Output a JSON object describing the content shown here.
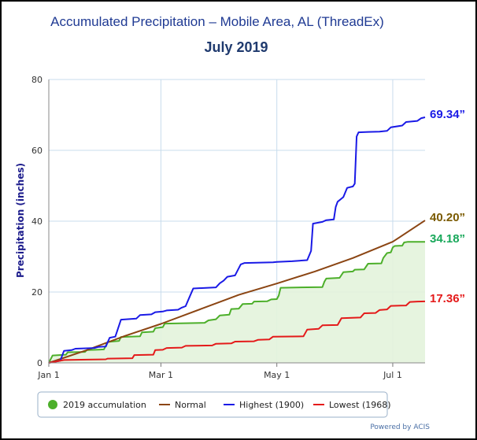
{
  "title": "Accumulated Precipitation – Mobile Area, AL (ThreadEx)",
  "subtitle": "July 2019",
  "credit": "Powered by ACIS",
  "chart_data": {
    "type": "line",
    "ylabel": "Precipitation (inches)",
    "xlabel": "",
    "ylim": [
      0,
      80
    ],
    "xlim": [
      0,
      198
    ],
    "y_ticks": [
      0,
      20,
      40,
      60,
      80
    ],
    "x_ticks": [
      {
        "day": 0,
        "label": "Jan 1"
      },
      {
        "day": 59,
        "label": "Mar 1"
      },
      {
        "day": 120,
        "label": "May 1"
      },
      {
        "day": 181,
        "label": "Jul 1"
      }
    ],
    "grid": true,
    "legend_position": "bottom",
    "series": [
      {
        "name": "2019 accumulation",
        "color": "#4caf2a",
        "fill": "#e3f3dc",
        "marker": "dot",
        "points": [
          [
            0,
            0
          ],
          [
            2,
            2.1
          ],
          [
            9,
            2.3
          ],
          [
            10,
            3.0
          ],
          [
            19,
            3.1
          ],
          [
            20,
            3.6
          ],
          [
            29,
            3.8
          ],
          [
            31,
            5.9
          ],
          [
            37,
            6.2
          ],
          [
            38,
            7.3
          ],
          [
            48,
            7.5
          ],
          [
            49,
            8.6
          ],
          [
            55,
            8.8
          ],
          [
            56,
            9.8
          ],
          [
            60,
            10.1
          ],
          [
            61,
            11.1
          ],
          [
            82,
            11.3
          ],
          [
            84,
            12.0
          ],
          [
            88,
            12.3
          ],
          [
            90,
            13.4
          ],
          [
            95,
            13.6
          ],
          [
            96,
            15.2
          ],
          [
            100,
            15.3
          ],
          [
            102,
            16.6
          ],
          [
            107,
            16.7
          ],
          [
            108,
            17.3
          ],
          [
            115,
            17.4
          ],
          [
            117,
            17.9
          ],
          [
            120,
            18.0
          ],
          [
            121,
            19.0
          ],
          [
            122,
            21.2
          ],
          [
            144,
            21.4
          ],
          [
            145,
            22.9
          ],
          [
            146,
            23.8
          ],
          [
            153,
            24.0
          ],
          [
            155,
            25.6
          ],
          [
            160,
            25.8
          ],
          [
            161,
            26.3
          ],
          [
            166,
            26.4
          ],
          [
            168,
            28.0
          ],
          [
            175,
            28.1
          ],
          [
            176,
            29.6
          ],
          [
            178,
            31.0
          ],
          [
            180,
            31.2
          ],
          [
            181,
            32.6
          ],
          [
            182,
            33.0
          ],
          [
            186,
            33.1
          ],
          [
            187,
            34.0
          ],
          [
            189,
            34.18
          ],
          [
            198,
            34.18
          ]
        ],
        "end_label": "34.18”"
      },
      {
        "name": "Normal",
        "color": "#8b4513",
        "points": [
          [
            0,
            0
          ],
          [
            20,
            3.6
          ],
          [
            40,
            7.6
          ],
          [
            59,
            11.0
          ],
          [
            80,
            15.2
          ],
          [
            100,
            19.2
          ],
          [
            120,
            22.4
          ],
          [
            140,
            25.8
          ],
          [
            160,
            29.6
          ],
          [
            181,
            34.2
          ],
          [
            198,
            40.2
          ]
        ],
        "end_label": "40.20”"
      },
      {
        "name": "Highest (1900)",
        "color": "#1a1ae6",
        "points": [
          [
            0,
            0
          ],
          [
            6,
            0.6
          ],
          [
            8,
            3.4
          ],
          [
            12,
            3.6
          ],
          [
            14,
            4.0
          ],
          [
            24,
            4.2
          ],
          [
            26,
            4.5
          ],
          [
            30,
            4.6
          ],
          [
            32,
            7.1
          ],
          [
            35,
            7.4
          ],
          [
            38,
            12.2
          ],
          [
            46,
            12.5
          ],
          [
            48,
            13.5
          ],
          [
            54,
            13.7
          ],
          [
            56,
            14.3
          ],
          [
            60,
            14.5
          ],
          [
            62,
            14.8
          ],
          [
            68,
            15.0
          ],
          [
            70,
            15.6
          ],
          [
            72,
            16.0
          ],
          [
            74,
            18.5
          ],
          [
            76,
            21.0
          ],
          [
            88,
            21.3
          ],
          [
            90,
            22.5
          ],
          [
            92,
            23.2
          ],
          [
            94,
            24.3
          ],
          [
            98,
            24.7
          ],
          [
            101,
            27.8
          ],
          [
            103,
            28.2
          ],
          [
            118,
            28.4
          ],
          [
            120,
            28.5
          ],
          [
            128,
            28.7
          ],
          [
            136,
            29.0
          ],
          [
            138,
            31.6
          ],
          [
            139,
            39.3
          ],
          [
            144,
            39.8
          ],
          [
            146,
            40.3
          ],
          [
            150,
            40.5
          ],
          [
            151,
            44.0
          ],
          [
            152,
            45.5
          ],
          [
            155,
            46.8
          ],
          [
            157,
            49.4
          ],
          [
            160,
            49.8
          ],
          [
            161,
            50.6
          ],
          [
            162,
            63.9
          ],
          [
            163,
            65.1
          ],
          [
            168,
            65.2
          ],
          [
            174,
            65.3
          ],
          [
            178,
            65.5
          ],
          [
            180,
            66.5
          ],
          [
            186,
            67.0
          ],
          [
            188,
            68.0
          ],
          [
            194,
            68.3
          ],
          [
            196,
            69.1
          ],
          [
            198,
            69.34
          ]
        ],
        "end_label": "69.34”"
      },
      {
        "name": "Lowest (1968)",
        "color": "#e41a1a",
        "points": [
          [
            0,
            0
          ],
          [
            8,
            0.8
          ],
          [
            20,
            0.9
          ],
          [
            30,
            1.0
          ],
          [
            31,
            1.2
          ],
          [
            44,
            1.3
          ],
          [
            45,
            2.2
          ],
          [
            55,
            2.3
          ],
          [
            56,
            3.6
          ],
          [
            60,
            3.7
          ],
          [
            62,
            4.2
          ],
          [
            70,
            4.3
          ],
          [
            72,
            4.8
          ],
          [
            86,
            4.9
          ],
          [
            88,
            5.4
          ],
          [
            96,
            5.5
          ],
          [
            98,
            6.0
          ],
          [
            108,
            6.1
          ],
          [
            110,
            6.5
          ],
          [
            116,
            6.6
          ],
          [
            118,
            7.4
          ],
          [
            134,
            7.5
          ],
          [
            136,
            9.4
          ],
          [
            142,
            9.6
          ],
          [
            144,
            10.6
          ],
          [
            152,
            10.7
          ],
          [
            154,
            12.6
          ],
          [
            164,
            12.8
          ],
          [
            166,
            14.0
          ],
          [
            172,
            14.1
          ],
          [
            174,
            14.9
          ],
          [
            178,
            15.1
          ],
          [
            180,
            16.1
          ],
          [
            188,
            16.2
          ],
          [
            190,
            17.2
          ],
          [
            194,
            17.3
          ],
          [
            198,
            17.36
          ]
        ],
        "end_label": "17.36”"
      }
    ]
  }
}
